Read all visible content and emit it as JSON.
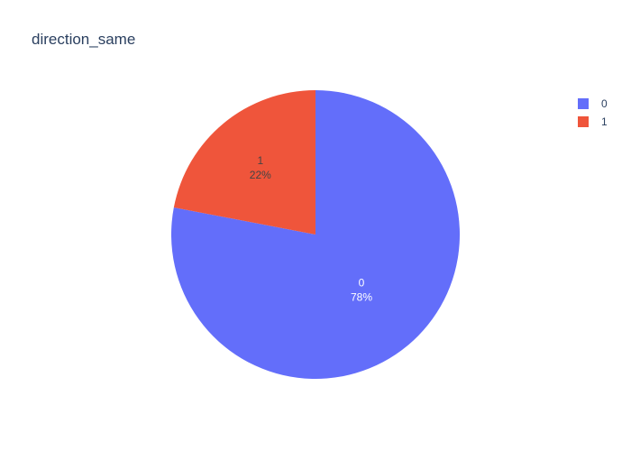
{
  "chart_data": {
    "type": "pie",
    "title": "direction_same",
    "labels": [
      "0",
      "1"
    ],
    "values": [
      78,
      22
    ],
    "percent_labels": [
      "78%",
      "22%"
    ],
    "colors": [
      "#636efa",
      "#ef553b"
    ],
    "label_text_colors": [
      "#ffffff",
      "#444444"
    ],
    "legend": {
      "placement": "top-right",
      "entries": [
        "0",
        "1"
      ]
    },
    "direction": "clockwise",
    "start_angle_deg": 90
  }
}
